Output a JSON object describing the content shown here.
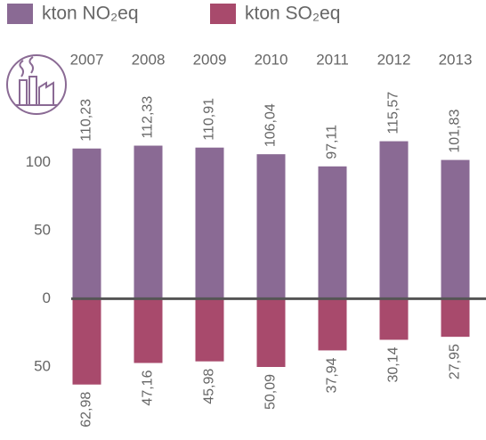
{
  "chart_data": {
    "type": "bar",
    "categories": [
      "2007",
      "2008",
      "2009",
      "2010",
      "2011",
      "2012",
      "2013"
    ],
    "series": [
      {
        "name": "kton NO₂eq",
        "color": "#8a6a94",
        "values": [
          110.23,
          112.33,
          110.91,
          106.04,
          97.11,
          115.57,
          101.83
        ],
        "value_labels": [
          "110,23",
          "112,33",
          "110,91",
          "106,04",
          "97,11",
          "115,57",
          "101,83"
        ]
      },
      {
        "name": "kton SO₂eq",
        "color": "#a84a6c",
        "values": [
          -62.98,
          -47.16,
          -45.98,
          -50.09,
          -37.94,
          -30.14,
          -27.95
        ],
        "value_labels": [
          "62,98",
          "47,16",
          "45,98",
          "50,09",
          "37,94",
          "30,14",
          "27,95"
        ]
      }
    ],
    "category_color": "#d4a82a",
    "ylim": [
      -88,
      180
    ],
    "yticks": [
      100,
      50,
      0,
      {
        "value": -50,
        "label": "50"
      }
    ],
    "zero_line": true
  }
}
